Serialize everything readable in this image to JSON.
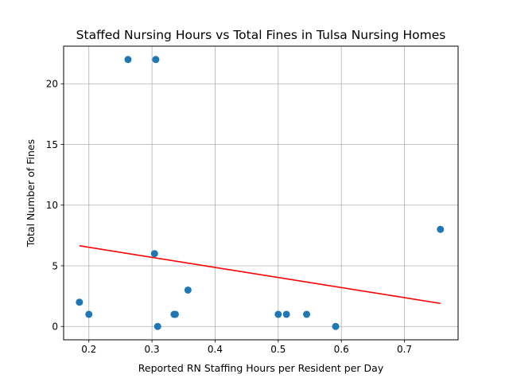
{
  "chart_data": {
    "type": "scatter",
    "title": "Staffed Nursing Hours vs Total Fines in Tulsa Nursing Homes",
    "xlabel": "Reported RN Staffing Hours per Resident per Day",
    "ylabel": "Total Number of Fines",
    "xlim": [
      0.16,
      0.785
    ],
    "ylim": [
      -1.1,
      23.1
    ],
    "x_ticks": [
      0.2,
      0.3,
      0.4,
      0.5,
      0.6,
      0.7
    ],
    "x_tick_labels": [
      "0.2",
      "0.3",
      "0.4",
      "0.5",
      "0.6",
      "0.7"
    ],
    "y_ticks": [
      0,
      5,
      10,
      15,
      20
    ],
    "y_tick_labels": [
      "0",
      "5",
      "10",
      "15",
      "20"
    ],
    "grid": true,
    "series": [
      {
        "kind": "points",
        "color": "#1f77b4",
        "points": [
          {
            "x": 0.185,
            "y": 2
          },
          {
            "x": 0.2,
            "y": 1
          },
          {
            "x": 0.262,
            "y": 22
          },
          {
            "x": 0.306,
            "y": 22
          },
          {
            "x": 0.304,
            "y": 6
          },
          {
            "x": 0.309,
            "y": 0
          },
          {
            "x": 0.335,
            "y": 1
          },
          {
            "x": 0.337,
            "y": 1
          },
          {
            "x": 0.357,
            "y": 3
          },
          {
            "x": 0.5,
            "y": 1
          },
          {
            "x": 0.513,
            "y": 1
          },
          {
            "x": 0.545,
            "y": 1
          },
          {
            "x": 0.591,
            "y": 0
          },
          {
            "x": 0.757,
            "y": 8
          }
        ]
      },
      {
        "kind": "trend-line",
        "color": "#ff0000",
        "x": [
          0.185,
          0.757
        ],
        "y": [
          6.65,
          1.9
        ]
      }
    ]
  }
}
